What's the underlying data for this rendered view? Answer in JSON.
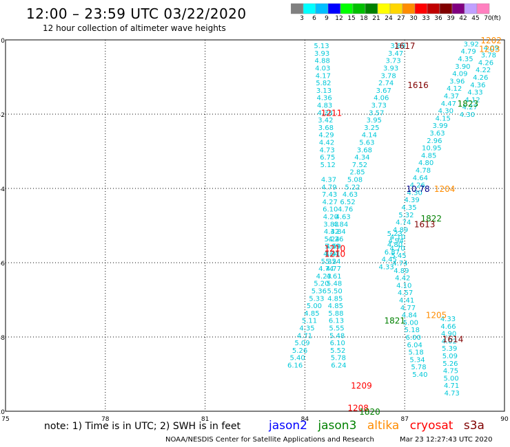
{
  "header": {
    "title": "12:00 – 23:59 UTC 03/22/2020",
    "subtitle": "12 hour collection of altimeter wave heights"
  },
  "legend": {
    "unit": "(ft)",
    "swatches": [
      {
        "color": "#808080",
        "label": "3"
      },
      {
        "color": "#00ffff",
        "label": "6"
      },
      {
        "color": "#00bfff",
        "label": "9"
      },
      {
        "color": "#0000ff",
        "label": "12"
      },
      {
        "color": "#00ff00",
        "label": "15"
      },
      {
        "color": "#00c000",
        "label": "18"
      },
      {
        "color": "#008000",
        "label": "21"
      },
      {
        "color": "#ffff00",
        "label": "24"
      },
      {
        "color": "#ffd700",
        "label": "27"
      },
      {
        "color": "#ff8c00",
        "label": "30"
      },
      {
        "color": "#ff0000",
        "label": "33"
      },
      {
        "color": "#c00000",
        "label": "36"
      },
      {
        "color": "#800000",
        "label": "39"
      },
      {
        "color": "#800080",
        "label": "42"
      },
      {
        "color": "#c0a0ff",
        "label": "45"
      },
      {
        "color": "#ff80c0",
        "label": "70"
      }
    ]
  },
  "map": {
    "lon_range": [
      75,
      90
    ],
    "lat_range": [
      -10,
      0
    ],
    "x_ticks": [
      "75",
      "78",
      "81",
      "84",
      "87",
      "90"
    ],
    "y_ticks": [
      "0",
      "-2",
      "-4",
      "-6",
      "-8",
      "-10"
    ]
  },
  "tracks": {
    "track_a": {
      "color": "#00c8d8",
      "lon_start": 84.5,
      "lat_start": -0.15,
      "lon_step": 0.012,
      "lat_step": 0.2,
      "values": [
        "5.13",
        "3.93",
        "4.88",
        "4.03",
        "4.17",
        "5.82",
        "3.13",
        "4.36",
        "4.83",
        "4.38",
        "3.42",
        "3.68",
        "4.29",
        "4.42",
        "4.73",
        "6.75",
        "5.12",
        "",
        "4.37",
        "4.79",
        "7.43",
        "4.27",
        "6.10",
        "4.20",
        "3.83",
        "4.32",
        "5.24",
        "5.09",
        "4.41",
        "5.24",
        "4.77",
        "4.61",
        "5.48",
        "5.50",
        "4.85",
        "4.85",
        "5.88",
        "6.13",
        "5.55",
        "5.48",
        "6.10",
        "5.52",
        "5.78",
        "6.24"
      ]
    },
    "track_b": {
      "color": "#00c8d8",
      "lon_start": 86.8,
      "lat_start": -0.15,
      "lon_step": -0.072,
      "lat_step": 0.2,
      "values": [
        "3.80",
        "3.47",
        "3.73",
        "3.93",
        "3.78",
        "2.74",
        "3.67",
        "4.06",
        "3.73",
        "3.57",
        "3.95",
        "3.25",
        "4.14",
        "5.63",
        "3.68",
        "4.34",
        "7.52",
        "2.85",
        "5.08",
        "5.22",
        "4.63",
        "6.52",
        "4.76",
        "4.63",
        "4.84",
        "4.84",
        "4.26",
        "4.59",
        "4.64",
        "5.35",
        "4.74",
        "4.23",
        "5.20",
        "5.36",
        "5.33",
        "5.00",
        "4.85",
        "5.11",
        "4.35",
        "4.71",
        "5.09",
        "5.26",
        "5.40",
        "6.16"
      ]
    },
    "track_c": {
      "color": "#00c8d8",
      "lon_start": 86.7,
      "lat_start": -5.2,
      "lon_step": 0.04,
      "lat_step": 0.2,
      "values": [
        "5.23",
        "4.94",
        "4.70",
        "5.45",
        "4.74",
        "4.89",
        "4.42",
        "4.10",
        "4.57",
        "4.41",
        "4.77",
        "4.84",
        "5.00",
        "5.18",
        "6.00",
        "6.04",
        "5.18",
        "5.34",
        "5.78",
        "5.40"
      ]
    },
    "track_d": {
      "color": "#00c8d8",
      "lon_start": 89.0,
      "lat_start": -0.1,
      "lon_step": -0.085,
      "lat_step": 0.2,
      "values": [
        "3.92",
        "4.79",
        "4.35",
        "3.90",
        "4.09",
        "3.96",
        "4.12",
        "4.37",
        "4.47",
        "4.30",
        "4.15",
        "3.99",
        "3.63",
        "2.96",
        "10.95",
        "4.85",
        "4.80",
        "4.78",
        "4.64",
        "4.26",
        "4.30",
        "4.39",
        "4.35",
        "5.32",
        "4.74",
        "4.89",
        "4.10",
        "4.80",
        "6.87",
        "4.45",
        "4.33"
      ]
    },
    "track_e": {
      "color": "#00c8d8",
      "lon_start": 88.3,
      "lat_start": -7.5,
      "lon_step": 0.012,
      "lat_step": 0.2,
      "values": [
        "4.33",
        "4.66",
        "4.90",
        "4.02",
        "5.39",
        "5.09",
        "5.26",
        "4.75",
        "5.00",
        "4.71",
        "4.73"
      ]
    },
    "track_f": {
      "color": "#00c8d8",
      "lon_start": 89.6,
      "lat_start": -0.2,
      "lon_step": -0.08,
      "lat_step": 0.2,
      "values": [
        "4.09",
        "3.78",
        "4.26",
        "4.22",
        "4.26",
        "4.36",
        "4.33",
        "4.12",
        "4.27",
        "4.30"
      ]
    }
  },
  "times": [
    {
      "label": "1617",
      "color": "#800000",
      "lon": 87.0,
      "lat": -0.15
    },
    {
      "label": "1616",
      "color": "#800000",
      "lon": 87.4,
      "lat": -1.2
    },
    {
      "label": "1211",
      "color": "#ff0000",
      "lon": 84.8,
      "lat": -1.95
    },
    {
      "label": "1202",
      "color": "#ff8c00",
      "lon": 89.6,
      "lat": 0.0
    },
    {
      "label": "1203",
      "color": "#ff8c00",
      "lon": 89.55,
      "lat": -0.23
    },
    {
      "label": "1823",
      "color": "#008000",
      "lon": 88.9,
      "lat": -1.7
    },
    {
      "label": "1204",
      "color": "#ff8c00",
      "lon": 88.2,
      "lat": -4.0
    },
    {
      "label": "10.78",
      "color": "#00008b",
      "lon": 87.4,
      "lat": -4.0
    },
    {
      "label": "1822",
      "color": "#008000",
      "lon": 87.8,
      "lat": -4.8
    },
    {
      "label": "1613",
      "color": "#800000",
      "lon": 87.6,
      "lat": -4.95
    },
    {
      "label": "1210",
      "color": "#ff0000",
      "lon": 84.9,
      "lat": -5.6
    },
    {
      "label": "1210",
      "color": "#ff0000",
      "lon": 84.9,
      "lat": -5.75
    },
    {
      "label": "1205",
      "color": "#ff8c00",
      "lon": 87.95,
      "lat": -7.4
    },
    {
      "label": "1821",
      "color": "#008000",
      "lon": 86.7,
      "lat": -7.55
    },
    {
      "label": "1614",
      "color": "#800000",
      "lon": 88.45,
      "lat": -8.05
    },
    {
      "label": "1209",
      "color": "#ff0000",
      "lon": 85.7,
      "lat": -9.3
    },
    {
      "label": "1208",
      "color": "#ff0000",
      "lon": 85.6,
      "lat": -9.9
    },
    {
      "label": "1820",
      "color": "#008000",
      "lon": 85.95,
      "lat": -10.0
    }
  ],
  "footer": {
    "note": "note:  1) Time is in UTC;  2) SWH is in feet",
    "satellites": [
      {
        "name": "jason2",
        "color": "#0000ff"
      },
      {
        "name": "jason3",
        "color": "#008000"
      },
      {
        "name": "altika",
        "color": "#ff8c00"
      },
      {
        "name": "cryosat",
        "color": "#ff0000"
      },
      {
        "name": "s3a",
        "color": "#800000"
      }
    ],
    "credit": "NOAA/NESDIS Center for Satellite Applications and Research",
    "timestamp": "Mar 23 12:27:43 UTC 2020"
  }
}
